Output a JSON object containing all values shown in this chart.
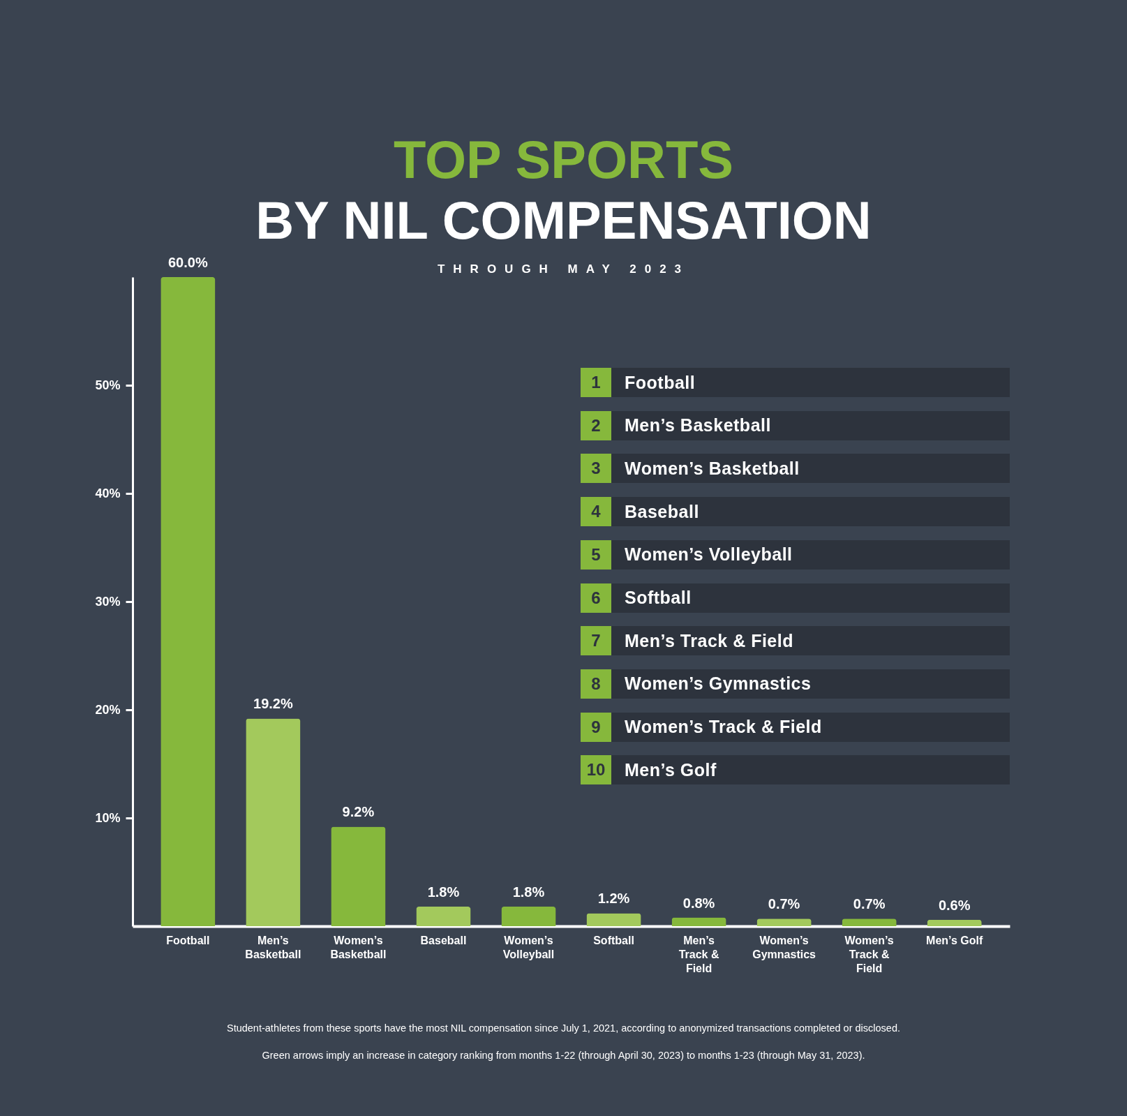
{
  "chart_data": {
    "type": "bar",
    "title": "TOP SPORTS",
    "subtitle": "BY NIL COMPENSATION",
    "categories": [
      "Football",
      "Men’s Basketball",
      "Women’s Basketball",
      "Baseball",
      "Women’s Volleyball",
      "Softball",
      "Men’s Track & Field",
      "Women’s Gymnastics",
      "Women’s Track & Field",
      "Men’s Golf"
    ],
    "values": [
      60.0,
      19.2,
      9.2,
      1.8,
      1.8,
      1.2,
      0.8,
      0.7,
      0.7,
      0.6
    ],
    "colors": [
      "#86b83c",
      "#a3c95c",
      "#86b83c",
      "#a3c95c",
      "#86b83c",
      "#a3c95c",
      "#86b83c",
      "#a3c95c",
      "#86b83c",
      "#a3c95c"
    ],
    "value_labels": [
      "60.0%",
      "19.2%",
      "9.2%",
      "1.8%",
      "1.8%",
      "1.2%",
      "0.8%",
      "0.7%",
      "0.7%",
      "0.6%"
    ],
    "ylim": [
      0,
      60
    ],
    "yticks": [
      {
        "value": 10,
        "label": "10%"
      },
      {
        "value": 20,
        "label": "20%"
      },
      {
        "value": 30,
        "label": "30%"
      },
      {
        "value": 40,
        "label": "40%"
      },
      {
        "value": 50,
        "label": "50%"
      }
    ],
    "annotations": [
      "1 Football",
      "2 Men’s Basketball",
      "3 Women’s Basketball",
      "4 Baseball",
      "5 Women’s Volleyball",
      "6 Softball",
      "7 Men’s Track & Field",
      "8 Women’s Gymnastics",
      "9 Women’s Track & Field",
      "10 Men’s Golf",
      "THROUGH MAY 2023",
      "Student-athletes from these sports have the most NIL compensation since July 1, 2021, according to anonymized transactions completed or disclosed.",
      "Green arrows imply an increase in category ranking from months 1-22 (through April 30, 2023) to months 1-23 (through May 31, 2023)."
    ]
  }
}
